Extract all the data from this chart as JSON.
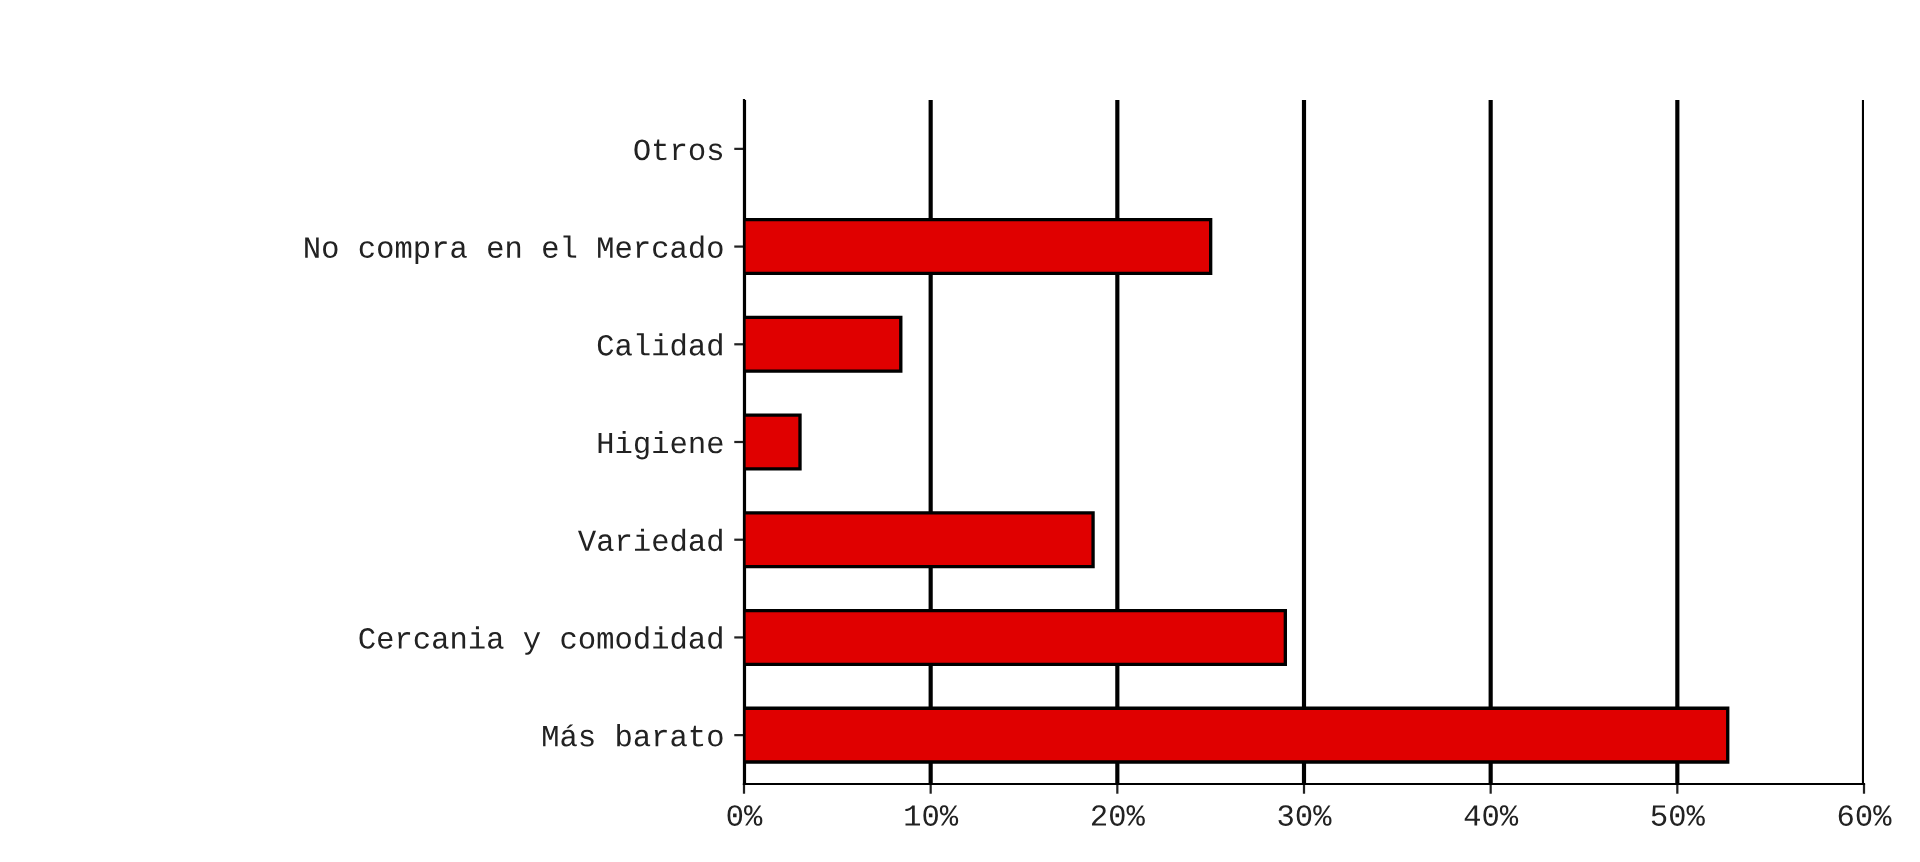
{
  "chart_data": {
    "type": "bar",
    "orientation": "horizontal",
    "categories": [
      "Otros",
      "No compra en el Mercado",
      "Calidad",
      "Higiene",
      "Variedad",
      "Cercania y comodidad",
      "Más barato"
    ],
    "values": [
      0,
      25.0,
      8.4,
      3.0,
      18.7,
      29.0,
      52.7
    ],
    "color": "#e00000",
    "xlim": [
      0,
      60
    ],
    "xticks": [
      {
        "value": 0,
        "label": "0%"
      },
      {
        "value": 10,
        "label": "10%"
      },
      {
        "value": 20,
        "label": "20%"
      },
      {
        "value": 30,
        "label": "30%"
      },
      {
        "value": 40,
        "label": "40%"
      },
      {
        "value": 50,
        "label": "50%"
      },
      {
        "value": 60,
        "label": "60%"
      }
    ],
    "grid": "x"
  }
}
